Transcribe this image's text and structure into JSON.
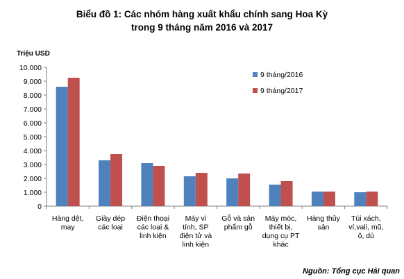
{
  "chart_data": {
    "type": "bar",
    "title_lines": [
      "Biểu đồ 1: Các nhóm hàng xuất khẩu chính sang Hoa Kỳ",
      "trong 9 tháng năm 2016 và 2017"
    ],
    "ylabel": "Triệu USD",
    "xlabel": "",
    "ylim": [
      0,
      10000
    ],
    "yticks": [
      "0",
      "1.000",
      "2.000",
      "3.000",
      "4.000",
      "5.000",
      "6.000",
      "7.000",
      "8.000",
      "9.000",
      "10.000"
    ],
    "categories": [
      [
        "Hàng dệt,",
        "may"
      ],
      [
        "Giày dép",
        "các loại"
      ],
      [
        "Điện thoại",
        "các loại &",
        "linh kiện"
      ],
      [
        "Máy vi",
        "tính, SP",
        "điện tử và",
        "linh kiện"
      ],
      [
        "Gỗ và sản",
        "phẩm gỗ"
      ],
      [
        "Máy móc,",
        "thiết bị,",
        "dụng cụ PT",
        "khác"
      ],
      [
        "Hàng thủy",
        "sản"
      ],
      [
        "Túi xách,",
        "ví,vali, mũ,",
        "ô, dù"
      ]
    ],
    "series": [
      {
        "name": "9 tháng/2016",
        "color": "#4F81BD",
        "values": [
          8600,
          3300,
          3100,
          2150,
          2000,
          1550,
          1050,
          1000
        ]
      },
      {
        "name": "9 tháng/2017",
        "color": "#C0504D",
        "values": [
          9250,
          3750,
          2900,
          2400,
          2350,
          1800,
          1050,
          1050
        ]
      }
    ],
    "legend_position": "top-right",
    "grid": false,
    "source_note": "Nguồn: Tổng cục Hải quan"
  }
}
